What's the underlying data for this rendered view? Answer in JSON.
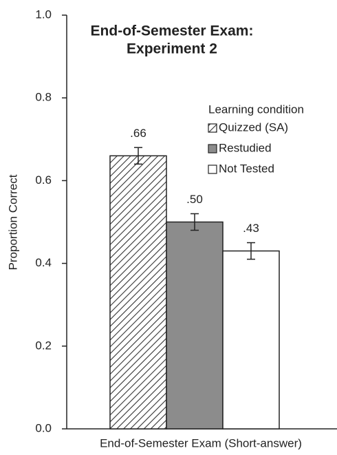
{
  "chart_data": {
    "type": "bar",
    "title": [
      "End-of-Semester Exam:",
      "Experiment 2"
    ],
    "xlabel": "End-of-Semester Exam (Short-answer)",
    "ylabel": "Proportion Correct",
    "categories": [
      "End-of-Semester Exam (Short-answer)"
    ],
    "legend_title": "Learning condition",
    "legend": "upper right",
    "series": [
      {
        "name": "Quizzed (SA)",
        "color": "#333333",
        "hatch": true,
        "values": [
          0.66
        ],
        "value_labels": [
          ".66"
        ],
        "errors": [
          0.02
        ]
      },
      {
        "name": "Restudied",
        "color": "#8c8c8c",
        "hatch": false,
        "values": [
          0.5
        ],
        "value_labels": [
          ".50"
        ],
        "errors": [
          0.02
        ]
      },
      {
        "name": "Not Tested",
        "color": "#ffffff",
        "hatch": false,
        "values": [
          0.43
        ],
        "value_labels": [
          ".43"
        ],
        "errors": [
          0.02
        ]
      }
    ],
    "ylim": [
      0,
      1.0
    ],
    "yticks": [
      {
        "value": 0,
        "label": "0.0"
      },
      {
        "value": 0.2,
        "label": "0.2"
      },
      {
        "value": 0.4,
        "label": "0.4"
      },
      {
        "value": 0.6,
        "label": "0.6"
      },
      {
        "value": 0.8,
        "label": "0.8"
      },
      {
        "value": 1.0,
        "label": "1.0"
      }
    ],
    "grid": false
  }
}
